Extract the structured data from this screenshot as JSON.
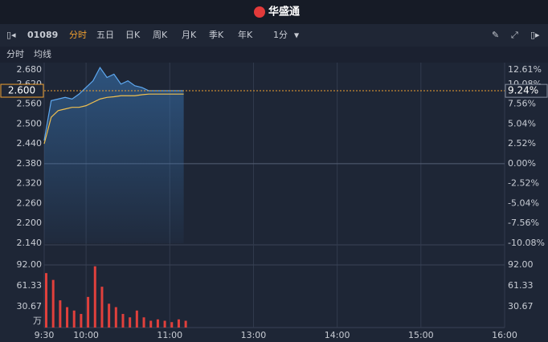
{
  "header": {
    "logo": "华盛通"
  },
  "toolbar": {
    "code": "01089",
    "tabs": [
      "分时",
      "五日",
      "日K",
      "周K",
      "月K",
      "季K",
      "年K"
    ],
    "interval": "1分"
  },
  "chart_data": [
    {
      "type": "line",
      "x": [
        "9:30",
        "9:35",
        "9:40",
        "9:45",
        "9:50",
        "9:55",
        "10:00",
        "10:05",
        "10:10",
        "10:15",
        "10:20",
        "10:25",
        "10:30",
        "10:35",
        "10:40",
        "10:45",
        "10:50",
        "10:55",
        "11:00",
        "11:05",
        "11:10"
      ],
      "series": [
        {
          "name": "分时",
          "color": "#5ea8f0",
          "values": [
            2.45,
            2.57,
            2.575,
            2.58,
            2.575,
            2.59,
            2.61,
            2.63,
            2.67,
            2.64,
            2.65,
            2.62,
            2.63,
            2.615,
            2.61,
            2.6,
            2.6,
            2.6,
            2.6,
            2.6,
            2.6
          ]
        },
        {
          "name": "均线",
          "color": "#f0c050",
          "values": [
            2.44,
            2.52,
            2.54,
            2.545,
            2.55,
            2.55,
            2.555,
            2.565,
            2.575,
            2.58,
            2.582,
            2.585,
            2.585,
            2.585,
            2.588,
            2.59,
            2.59,
            2.59,
            2.59,
            2.59,
            2.59
          ]
        }
      ],
      "ylim": [
        2.14,
        2.68
      ],
      "yticks": [
        {
          "value": 2.68,
          "label": "2.680"
        },
        {
          "value": 2.62,
          "label": "2.620"
        },
        {
          "value": 2.56,
          "label": "2.560"
        },
        {
          "value": 2.5,
          "label": "2.500"
        },
        {
          "value": 2.44,
          "label": "2.440"
        },
        {
          "value": 2.38,
          "label": "2.380"
        },
        {
          "value": 2.32,
          "label": "2.320"
        },
        {
          "value": 2.26,
          "label": "2.260"
        },
        {
          "value": 2.2,
          "label": "2.200"
        },
        {
          "value": 2.14,
          "label": "2.140"
        }
      ],
      "y2lim": [
        -10.08,
        12.61
      ],
      "y2ticks": [
        {
          "value": 12.61,
          "label": "12.61%"
        },
        {
          "value": 10.08,
          "label": "10.08%"
        },
        {
          "value": 7.56,
          "label": "7.56%"
        },
        {
          "value": 5.04,
          "label": "5.04%"
        },
        {
          "value": 2.52,
          "label": "2.52%"
        },
        {
          "value": 0,
          "label": "0.00%"
        },
        {
          "value": -2.52,
          "label": "-2.52%"
        },
        {
          "value": -5.04,
          "label": "-5.04%"
        },
        {
          "value": -7.56,
          "label": "-7.56%"
        },
        {
          "value": -10.08,
          "label": "-10.08%"
        }
      ],
      "last_price": {
        "value": 2.6,
        "label": "2.600"
      },
      "last_change": {
        "value": 9.24,
        "label": "9.24%"
      }
    },
    {
      "type": "bar",
      "x": [
        "9:30",
        "9:35",
        "9:40",
        "9:45",
        "9:50",
        "9:55",
        "10:00",
        "10:05",
        "10:10",
        "10:15",
        "10:20",
        "10:25",
        "10:30",
        "10:35",
        "10:40",
        "10:45",
        "10:50",
        "10:55",
        "11:00",
        "11:05",
        "11:10"
      ],
      "values": [
        80,
        70,
        40,
        30,
        25,
        20,
        45,
        90,
        60,
        35,
        30,
        20,
        15,
        25,
        15,
        10,
        12,
        10,
        8,
        12,
        10
      ],
      "color": "#e0403c",
      "ylim": [
        0,
        92
      ],
      "yticks": [
        {
          "value": 92,
          "label": "92.00"
        },
        {
          "value": 61.33,
          "label": "61.33"
        },
        {
          "value": 30.67,
          "label": "30.67"
        }
      ],
      "unit": "万",
      "xticks": [
        "9:30",
        "10:00",
        "11:00",
        "13:00",
        "14:00",
        "15:00",
        "16:00"
      ]
    }
  ]
}
